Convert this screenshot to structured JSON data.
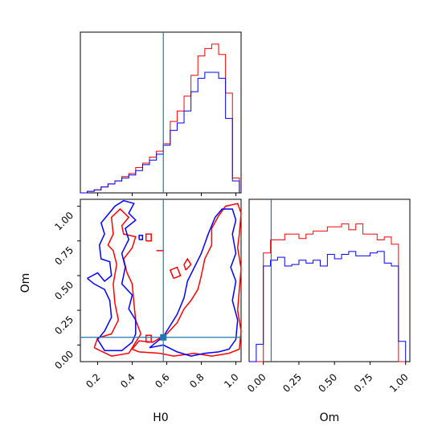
{
  "chart_data": {
    "type": "corner",
    "parameters": [
      "H0",
      "Om"
    ],
    "truth": {
      "H0": 0.58,
      "Om": 0.055
    },
    "colors": {
      "series_a": "#ff0000",
      "series_b": "#0000ff",
      "truth": "#1f77b4"
    },
    "h0_hist": {
      "x_range": [
        0.1,
        1.03
      ],
      "bin_edges": [
        0.1,
        0.14,
        0.18,
        0.22,
        0.26,
        0.3,
        0.34,
        0.38,
        0.42,
        0.46,
        0.5,
        0.54,
        0.58,
        0.62,
        0.66,
        0.7,
        0.74,
        0.78,
        0.82,
        0.86,
        0.9,
        0.94,
        0.98,
        1.02
      ],
      "series_a": [
        0.0,
        0.01,
        0.02,
        0.04,
        0.06,
        0.08,
        0.11,
        0.13,
        0.17,
        0.2,
        0.24,
        0.28,
        0.33,
        0.48,
        0.55,
        0.65,
        0.79,
        0.92,
        0.97,
        1.0,
        0.93,
        0.67,
        0.1
      ],
      "series_b": [
        0.0,
        0.01,
        0.02,
        0.04,
        0.06,
        0.08,
        0.1,
        0.12,
        0.15,
        0.19,
        0.22,
        0.26,
        0.32,
        0.42,
        0.47,
        0.55,
        0.68,
        0.77,
        0.81,
        0.81,
        0.77,
        0.5,
        0.08
      ],
      "ymax": 1.08
    },
    "om_hist": {
      "x_range": [
        -0.1,
        1.03
      ],
      "bin_edges": [
        -0.1,
        -0.05,
        0.0,
        0.05,
        0.1,
        0.15,
        0.2,
        0.25,
        0.3,
        0.35,
        0.4,
        0.45,
        0.5,
        0.55,
        0.6,
        0.65,
        0.7,
        0.75,
        0.8,
        0.85,
        0.9,
        0.95,
        1.0
      ],
      "series_a": [
        0.0,
        0.0,
        0.75,
        0.84,
        0.84,
        0.88,
        0.88,
        0.85,
        0.88,
        0.9,
        0.9,
        0.93,
        0.93,
        0.95,
        0.91,
        0.95,
        0.88,
        0.88,
        0.84,
        0.86,
        0.81,
        0.0
      ],
      "series_b": [
        0.0,
        0.12,
        0.66,
        0.7,
        0.72,
        0.66,
        0.67,
        0.7,
        0.68,
        0.7,
        0.66,
        0.74,
        0.71,
        0.74,
        0.76,
        0.73,
        0.73,
        0.75,
        0.76,
        0.68,
        0.66,
        0.14
      ],
      "ymax": 1.12
    },
    "scatter_2d": {
      "xlim": [
        0.1,
        1.03
      ],
      "ylim": [
        -0.12,
        1.05
      ],
      "contours_a": [
        [
          [
            0.18,
            -0.02
          ],
          [
            0.2,
            0.05
          ],
          [
            0.28,
            0.08
          ],
          [
            0.32,
            0.18
          ],
          [
            0.3,
            0.3
          ],
          [
            0.29,
            0.44
          ],
          [
            0.31,
            0.58
          ],
          [
            0.29,
            0.68
          ],
          [
            0.26,
            0.72
          ],
          [
            0.29,
            0.8
          ],
          [
            0.28,
            0.92
          ],
          [
            0.33,
            0.98
          ],
          [
            0.38,
            0.92
          ],
          [
            0.34,
            0.86
          ],
          [
            0.35,
            0.8
          ],
          [
            0.42,
            0.78
          ],
          [
            0.4,
            0.7
          ],
          [
            0.35,
            0.62
          ],
          [
            0.37,
            0.52
          ],
          [
            0.4,
            0.44
          ],
          [
            0.41,
            0.3
          ],
          [
            0.42,
            0.18
          ],
          [
            0.45,
            0.08
          ],
          [
            0.42,
            0.02
          ],
          [
            0.38,
            -0.06
          ],
          [
            0.28,
            -0.08
          ],
          [
            0.18,
            -0.02
          ]
        ],
        [
          [
            0.4,
            -0.03
          ],
          [
            0.44,
            -0.05
          ],
          [
            0.56,
            -0.06
          ],
          [
            0.64,
            -0.08
          ],
          [
            0.76,
            -0.06
          ],
          [
            0.86,
            -0.08
          ],
          [
            0.96,
            -0.06
          ],
          [
            1.02,
            -0.03
          ],
          [
            1.03,
            0.1
          ],
          [
            1.01,
            0.25
          ],
          [
            1.02,
            0.4
          ],
          [
            1.03,
            0.55
          ],
          [
            1.01,
            0.7
          ],
          [
            1.02,
            0.8
          ],
          [
            1.03,
            0.95
          ],
          [
            1.01,
            1.02
          ],
          [
            0.94,
            1.0
          ],
          [
            0.9,
            0.93
          ],
          [
            0.86,
            0.84
          ],
          [
            0.86,
            0.72
          ],
          [
            0.82,
            0.62
          ],
          [
            0.8,
            0.5
          ],
          [
            0.78,
            0.4
          ],
          [
            0.74,
            0.32
          ],
          [
            0.7,
            0.26
          ],
          [
            0.66,
            0.16
          ],
          [
            0.6,
            0.08
          ],
          [
            0.52,
            0.02
          ],
          [
            0.44,
            0.03
          ],
          [
            0.4,
            -0.03
          ]
        ],
        [
          [
            0.64,
            0.48
          ],
          [
            0.68,
            0.5
          ],
          [
            0.66,
            0.56
          ],
          [
            0.62,
            0.54
          ],
          [
            0.64,
            0.48
          ]
        ],
        [
          [
            0.71,
            0.54
          ],
          [
            0.74,
            0.58
          ],
          [
            0.72,
            0.62
          ],
          [
            0.7,
            0.58
          ],
          [
            0.71,
            0.54
          ]
        ],
        [
          [
            0.48,
            0.02
          ],
          [
            0.51,
            0.02
          ],
          [
            0.51,
            0.07
          ],
          [
            0.48,
            0.07
          ],
          [
            0.48,
            0.02
          ]
        ],
        [
          [
            0.48,
            0.75
          ],
          [
            0.51,
            0.75
          ],
          [
            0.51,
            0.8
          ],
          [
            0.48,
            0.8
          ],
          [
            0.48,
            0.75
          ]
        ],
        [
          [
            0.54,
            0.68
          ],
          [
            0.58,
            0.68
          ]
        ]
      ],
      "contours_b": [
        [
          [
            0.14,
            0.48
          ],
          [
            0.2,
            0.52
          ],
          [
            0.24,
            0.46
          ],
          [
            0.28,
            0.5
          ],
          [
            0.27,
            0.6
          ],
          [
            0.22,
            0.62
          ],
          [
            0.21,
            0.72
          ],
          [
            0.24,
            0.8
          ],
          [
            0.22,
            0.88
          ],
          [
            0.26,
            0.94
          ],
          [
            0.3,
            1.0
          ],
          [
            0.35,
            1.04
          ],
          [
            0.41,
            1.02
          ],
          [
            0.38,
            0.95
          ],
          [
            0.42,
            0.9
          ],
          [
            0.36,
            0.84
          ],
          [
            0.38,
            0.76
          ],
          [
            0.34,
            0.66
          ],
          [
            0.36,
            0.56
          ],
          [
            0.34,
            0.44
          ],
          [
            0.4,
            0.36
          ],
          [
            0.38,
            0.26
          ],
          [
            0.42,
            0.18
          ],
          [
            0.42,
            0.08
          ],
          [
            0.4,
            0.02
          ],
          [
            0.34,
            -0.04
          ],
          [
            0.24,
            -0.04
          ],
          [
            0.2,
            0.04
          ],
          [
            0.24,
            0.1
          ],
          [
            0.28,
            0.2
          ],
          [
            0.27,
            0.32
          ],
          [
            0.24,
            0.4
          ],
          [
            0.18,
            0.44
          ],
          [
            0.14,
            0.48
          ]
        ],
        [
          [
            0.5,
            -0.02
          ],
          [
            0.58,
            0.0
          ],
          [
            0.66,
            -0.05
          ],
          [
            0.74,
            -0.08
          ],
          [
            0.82,
            -0.06
          ],
          [
            0.9,
            -0.05
          ],
          [
            0.96,
            -0.03
          ],
          [
            1.0,
            0.04
          ],
          [
            1.01,
            0.18
          ],
          [
            0.98,
            0.32
          ],
          [
            1.0,
            0.46
          ],
          [
            0.97,
            0.56
          ],
          [
            1.0,
            0.66
          ],
          [
            0.98,
            0.8
          ],
          [
            1.0,
            0.9
          ],
          [
            0.98,
            0.98
          ],
          [
            0.92,
            0.98
          ],
          [
            0.88,
            0.92
          ],
          [
            0.84,
            0.8
          ],
          [
            0.8,
            0.66
          ],
          [
            0.76,
            0.56
          ],
          [
            0.72,
            0.46
          ],
          [
            0.7,
            0.34
          ],
          [
            0.66,
            0.22
          ],
          [
            0.62,
            0.14
          ],
          [
            0.58,
            0.06
          ],
          [
            0.5,
            -0.02
          ]
        ],
        [
          [
            0.44,
            0.76
          ],
          [
            0.46,
            0.76
          ],
          [
            0.46,
            0.79
          ],
          [
            0.44,
            0.79
          ],
          [
            0.44,
            0.76
          ]
        ]
      ]
    },
    "h0_ticks": [
      0.2,
      0.4,
      0.6,
      0.8,
      1.0
    ],
    "h0_tick_labels": [
      "0.2",
      "0.4",
      "0.6",
      "0.8",
      "1.0"
    ],
    "om_ticks": [
      0.0,
      0.25,
      0.5,
      0.75,
      1.0
    ],
    "om_tick_labels": [
      "0.00",
      "0.25",
      "0.50",
      "0.75",
      "1.00"
    ],
    "xlabel_h0": "H0",
    "xlabel_om": "Om",
    "ylabel_om": "Om"
  }
}
